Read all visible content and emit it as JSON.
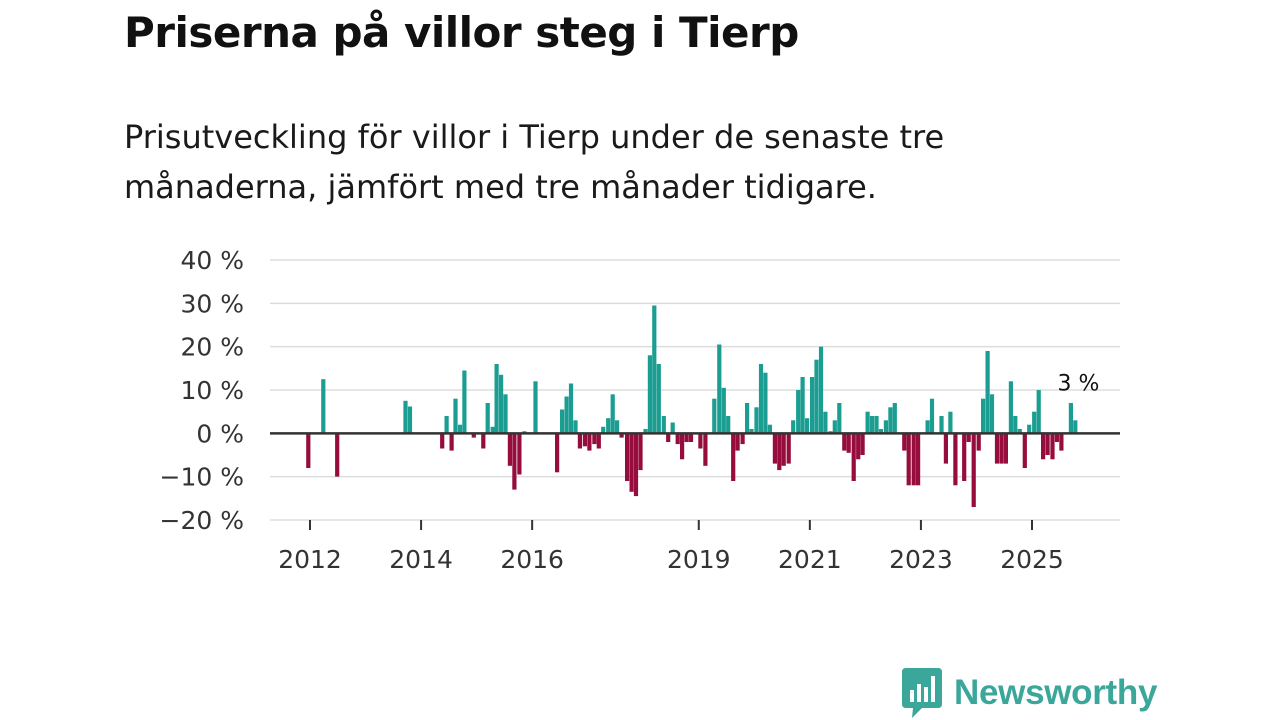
{
  "title": "Priserna på villor steg i Tierp",
  "subtitle": "Prisutveckling för villor i Tierp under de senaste tre månaderna, jämfört med tre månader tidigare.",
  "brand": {
    "name": "Newsworthy",
    "color": "#3aa79a",
    "icon": "newsworthy-logo-icon"
  },
  "chart_data": {
    "type": "bar",
    "title": "Priserna på villor steg i Tierp",
    "xlabel": "",
    "ylabel": "",
    "ylim": [
      -20,
      40
    ],
    "yticks": [
      40,
      30,
      20,
      10,
      0,
      -10,
      -20
    ],
    "ytick_labels": [
      "40 %",
      "30 %",
      "20 %",
      "10 %",
      "0 %",
      "−10 %",
      "−20 %"
    ],
    "xlim": [
      2011.0,
      2026.5
    ],
    "xticks": [
      2012,
      2014,
      2016,
      2019,
      2021,
      2023,
      2025
    ],
    "xtick_labels": [
      "2012",
      "2014",
      "2016",
      "2019",
      "2021",
      "2023",
      "2025"
    ],
    "grid": true,
    "colors": {
      "positive": "#1b9e91",
      "negative": "#960c3c",
      "zero_line": "#333333",
      "grid": "#dddddd"
    },
    "annotation": {
      "text": "3 %",
      "x": 2025.8,
      "y": 3
    },
    "series": [
      {
        "name": "Prisutveckling",
        "points": [
          [
            2011.97,
            -8
          ],
          [
            2012.24,
            12.5
          ],
          [
            2012.49,
            -10
          ],
          [
            2013.72,
            7.5
          ],
          [
            2013.8,
            6.2
          ],
          [
            2014.38,
            -3.5
          ],
          [
            2014.46,
            4
          ],
          [
            2014.55,
            -4
          ],
          [
            2014.62,
            8
          ],
          [
            2014.7,
            2
          ],
          [
            2014.78,
            14.5
          ],
          [
            2014.95,
            -1
          ],
          [
            2015.12,
            -3.5
          ],
          [
            2015.2,
            7
          ],
          [
            2015.29,
            1.5
          ],
          [
            2015.36,
            16
          ],
          [
            2015.44,
            13.5
          ],
          [
            2015.52,
            9
          ],
          [
            2015.6,
            -7.5
          ],
          [
            2015.68,
            -13
          ],
          [
            2015.77,
            -9.5
          ],
          [
            2015.86,
            0.5
          ],
          [
            2016.06,
            12
          ],
          [
            2016.45,
            -9
          ],
          [
            2016.54,
            5.5
          ],
          [
            2016.62,
            8.5
          ],
          [
            2016.7,
            11.5
          ],
          [
            2016.78,
            3
          ],
          [
            2016.86,
            -3.5
          ],
          [
            2016.95,
            -3
          ],
          [
            2017.03,
            -4
          ],
          [
            2017.12,
            -2.5
          ],
          [
            2017.2,
            -3.5
          ],
          [
            2017.28,
            1.5
          ],
          [
            2017.37,
            3.5
          ],
          [
            2017.45,
            9
          ],
          [
            2017.53,
            3
          ],
          [
            2017.61,
            -1
          ],
          [
            2017.71,
            -11
          ],
          [
            2017.79,
            -13.5
          ],
          [
            2017.87,
            -14.5
          ],
          [
            2017.95,
            -8.5
          ],
          [
            2018.04,
            1
          ],
          [
            2018.12,
            18
          ],
          [
            2018.2,
            29.5
          ],
          [
            2018.28,
            16
          ],
          [
            2018.37,
            4
          ],
          [
            2018.45,
            -2
          ],
          [
            2018.53,
            2.5
          ],
          [
            2018.62,
            -2.5
          ],
          [
            2018.7,
            -6
          ],
          [
            2018.78,
            -2
          ],
          [
            2018.86,
            -2
          ],
          [
            2019.03,
            -3.5
          ],
          [
            2019.12,
            -7.5
          ],
          [
            2019.28,
            8
          ],
          [
            2019.37,
            20.5
          ],
          [
            2019.45,
            10.5
          ],
          [
            2019.53,
            4
          ],
          [
            2019.62,
            -11
          ],
          [
            2019.7,
            -4
          ],
          [
            2019.79,
            -2.5
          ],
          [
            2019.87,
            7
          ],
          [
            2019.95,
            1
          ],
          [
            2020.04,
            6
          ],
          [
            2020.12,
            16
          ],
          [
            2020.2,
            14
          ],
          [
            2020.28,
            2
          ],
          [
            2020.37,
            -7
          ],
          [
            2020.45,
            -8.5
          ],
          [
            2020.53,
            -7.5
          ],
          [
            2020.62,
            -7
          ],
          [
            2020.7,
            3
          ],
          [
            2020.79,
            10
          ],
          [
            2020.87,
            13
          ],
          [
            2020.95,
            3.5
          ],
          [
            2021.04,
            13
          ],
          [
            2021.12,
            17
          ],
          [
            2021.2,
            20
          ],
          [
            2021.28,
            5
          ],
          [
            2021.37,
            0.5
          ],
          [
            2021.45,
            3
          ],
          [
            2021.53,
            7
          ],
          [
            2021.62,
            -4
          ],
          [
            2021.7,
            -4.5
          ],
          [
            2021.79,
            -11
          ],
          [
            2021.87,
            -6
          ],
          [
            2021.95,
            -5
          ],
          [
            2022.04,
            5
          ],
          [
            2022.12,
            4
          ],
          [
            2022.2,
            4
          ],
          [
            2022.28,
            1
          ],
          [
            2022.37,
            3
          ],
          [
            2022.45,
            6
          ],
          [
            2022.53,
            7
          ],
          [
            2022.7,
            -4
          ],
          [
            2022.78,
            -12
          ],
          [
            2022.87,
            -12
          ],
          [
            2022.95,
            -12
          ],
          [
            2023.12,
            3
          ],
          [
            2023.2,
            8
          ],
          [
            2023.37,
            4
          ],
          [
            2023.45,
            -7
          ],
          [
            2023.53,
            5
          ],
          [
            2023.62,
            -12
          ],
          [
            2023.78,
            -11
          ],
          [
            2023.86,
            -2
          ],
          [
            2023.95,
            -17
          ],
          [
            2024.04,
            -4
          ],
          [
            2024.12,
            8
          ],
          [
            2024.2,
            19
          ],
          [
            2024.28,
            9
          ],
          [
            2024.37,
            -7
          ],
          [
            2024.45,
            -7
          ],
          [
            2024.53,
            -7
          ],
          [
            2024.62,
            12
          ],
          [
            2024.7,
            4
          ],
          [
            2024.78,
            1
          ],
          [
            2024.87,
            -8
          ],
          [
            2024.95,
            2
          ],
          [
            2025.04,
            5
          ],
          [
            2025.12,
            10
          ],
          [
            2025.2,
            -6
          ],
          [
            2025.28,
            -5
          ],
          [
            2025.37,
            -6
          ],
          [
            2025.45,
            -2
          ],
          [
            2025.53,
            -4
          ],
          [
            2025.7,
            7
          ],
          [
            2025.78,
            3
          ]
        ]
      }
    ]
  }
}
